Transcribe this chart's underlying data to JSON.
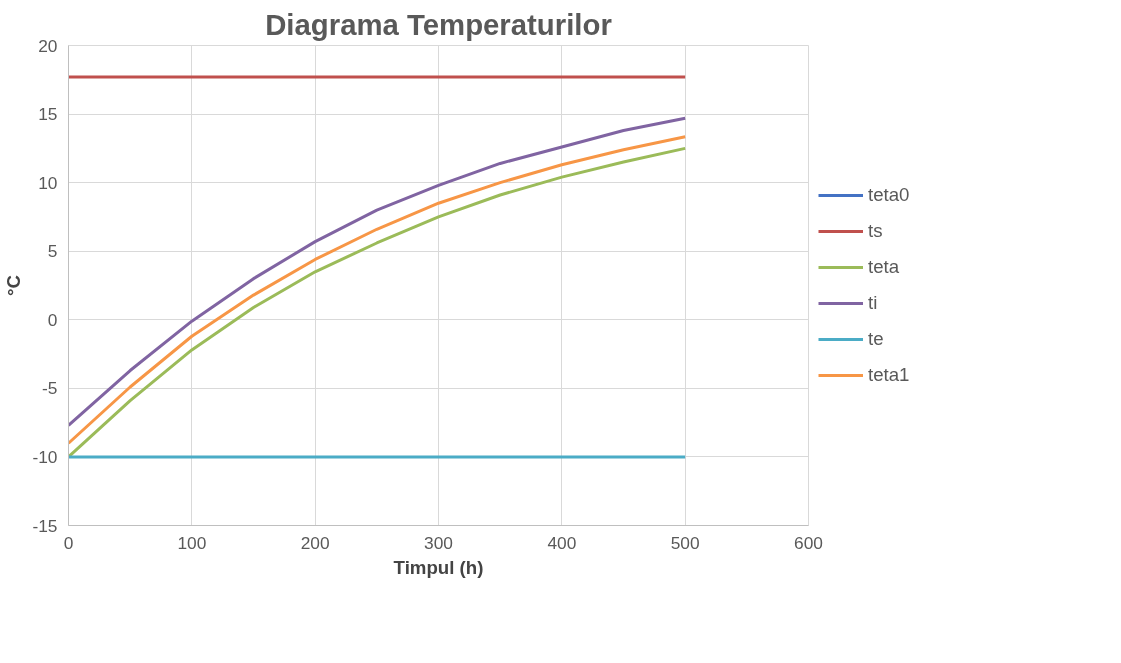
{
  "chart_data": {
    "type": "line",
    "title": "Diagrama Temperaturilor",
    "xlabel": "Timpul (h)",
    "ylabel": "°C",
    "x": [
      0,
      50,
      100,
      150,
      200,
      250,
      300,
      350,
      400,
      450,
      500
    ],
    "series": [
      {
        "name": "teta0",
        "color": "#4472c4",
        "values": [
          null,
          null,
          null,
          null,
          null,
          null,
          null,
          null,
          null,
          null,
          null
        ]
      },
      {
        "name": "ts",
        "color": "#c0504d",
        "values": [
          17.7,
          17.7,
          17.7,
          17.7,
          17.7,
          17.7,
          17.7,
          17.7,
          17.7,
          17.7,
          17.7
        ]
      },
      {
        "name": "teta",
        "color": "#9bbb59",
        "values": [
          -10,
          -5.9,
          -2.2,
          0.9,
          3.5,
          5.6,
          7.5,
          9.1,
          10.4,
          11.5,
          12.5
        ]
      },
      {
        "name": "ti",
        "color": "#8064a2",
        "values": [
          -7.7,
          -3.7,
          -0.1,
          3.0,
          5.7,
          8.0,
          9.8,
          11.4,
          12.6,
          13.8,
          14.7
        ]
      },
      {
        "name": "te",
        "color": "#4bacc6",
        "values": [
          -10,
          -10,
          -10,
          -10,
          -10,
          -10,
          -10,
          -10,
          -10,
          -10,
          -10
        ]
      },
      {
        "name": "teta1",
        "color": "#f79646",
        "values": [
          -9.0,
          -4.9,
          -1.2,
          1.8,
          4.4,
          6.6,
          8.5,
          10.0,
          11.3,
          12.4,
          13.35
        ]
      }
    ],
    "xlim": [
      0,
      600
    ],
    "xticks": [
      0,
      100,
      200,
      300,
      400,
      500,
      600
    ],
    "ylim": [
      -15,
      20
    ],
    "yticks": [
      -15,
      -10,
      -5,
      0,
      5,
      10,
      15,
      20
    ],
    "grid": true,
    "legend": "right",
    "marker": "none",
    "line_style": "solid"
  }
}
